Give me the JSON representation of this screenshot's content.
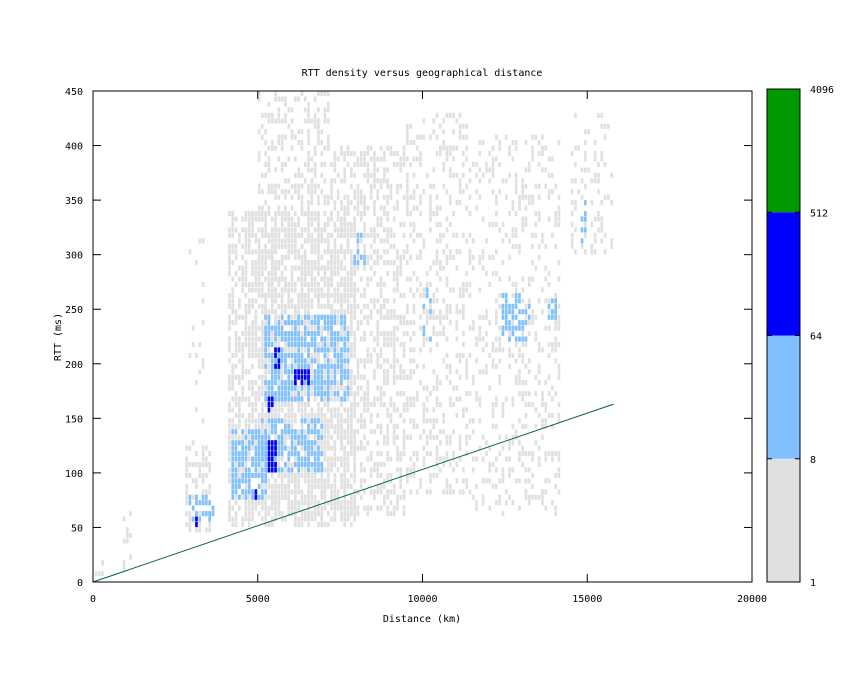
{
  "chart_data": {
    "type": "heatmap",
    "title": "RTT density versus geographical distance",
    "xlabel": "Distance (km)",
    "ylabel": "RTT (ms)",
    "xlim": [
      0,
      20000
    ],
    "ylim": [
      0,
      450
    ],
    "xticks": [
      "0",
      "5000",
      "10000",
      "15000",
      "20000"
    ],
    "yticks": [
      "0",
      "50",
      "100",
      "150",
      "200",
      "250",
      "300",
      "350",
      "400",
      "450"
    ],
    "grid": false,
    "colorbar": {
      "scale": "log2",
      "ticks": [
        "1",
        "8",
        "64",
        "512",
        "4096"
      ],
      "bins": [
        {
          "min": 1,
          "max": 8,
          "color": "#e0e0e0"
        },
        {
          "min": 8,
          "max": 64,
          "color": "#80c0ff"
        },
        {
          "min": 64,
          "max": 512,
          "color": "#0000ff"
        },
        {
          "min": 512,
          "max": 4096,
          "color": "#009900"
        }
      ]
    },
    "reference_line": {
      "x": [
        0,
        15800
      ],
      "y": [
        0,
        163
      ],
      "color": "#006633"
    },
    "regions": [
      {
        "bin": 0,
        "x": [
          50,
          300
        ],
        "y": [
          0,
          25
        ],
        "density": 0.35
      },
      {
        "bin": 0,
        "x": [
          900,
          1200
        ],
        "y": [
          10,
          65
        ],
        "density": 0.35
      },
      {
        "bin": 0,
        "x": [
          2800,
          3600
        ],
        "y": [
          45,
          125
        ],
        "density": 0.45
      },
      {
        "bin": 0,
        "x": [
          2900,
          3400
        ],
        "y": [
          120,
          320
        ],
        "density": 0.1
      },
      {
        "bin": 0,
        "x": [
          4100,
          8000
        ],
        "y": [
          50,
          340
        ],
        "density": 0.6
      },
      {
        "bin": 0,
        "x": [
          5000,
          7200
        ],
        "y": [
          60,
          450
        ],
        "density": 0.35
      },
      {
        "bin": 0,
        "x": [
          7200,
          9500
        ],
        "y": [
          60,
          400
        ],
        "density": 0.45
      },
      {
        "bin": 0,
        "x": [
          9500,
          11500
        ],
        "y": [
          80,
          430
        ],
        "density": 0.28
      },
      {
        "bin": 0,
        "x": [
          11500,
          14200
        ],
        "y": [
          60,
          410
        ],
        "density": 0.25
      },
      {
        "bin": 0,
        "x": [
          14500,
          15800
        ],
        "y": [
          300,
          430
        ],
        "density": 0.25
      },
      {
        "bin": 1,
        "x": [
          2900,
          3700
        ],
        "y": [
          55,
          80
        ],
        "density": 0.55
      },
      {
        "bin": 1,
        "x": [
          4200,
          5300
        ],
        "y": [
          75,
          140
        ],
        "density": 0.7
      },
      {
        "bin": 1,
        "x": [
          5000,
          7000
        ],
        "y": [
          100,
          150
        ],
        "density": 0.6
      },
      {
        "bin": 1,
        "x": [
          5200,
          7800
        ],
        "y": [
          165,
          245
        ],
        "density": 0.6
      },
      {
        "bin": 1,
        "x": [
          7900,
          8300
        ],
        "y": [
          290,
          320
        ],
        "density": 0.5
      },
      {
        "bin": 1,
        "x": [
          10000,
          10300
        ],
        "y": [
          220,
          270
        ],
        "density": 0.45
      },
      {
        "bin": 1,
        "x": [
          12400,
          13300
        ],
        "y": [
          220,
          265
        ],
        "density": 0.5
      },
      {
        "bin": 1,
        "x": [
          13800,
          14100
        ],
        "y": [
          240,
          260
        ],
        "density": 0.6
      },
      {
        "bin": 1,
        "x": [
          14800,
          15000
        ],
        "y": [
          310,
          350
        ],
        "density": 0.5
      },
      {
        "bin": 2,
        "x": [
          3100,
          3200
        ],
        "y": [
          50,
          60
        ],
        "density": 0.8
      },
      {
        "bin": 2,
        "x": [
          4900,
          5000
        ],
        "y": [
          75,
          85
        ],
        "density": 0.9
      },
      {
        "bin": 2,
        "x": [
          5300,
          5600
        ],
        "y": [
          100,
          130
        ],
        "density": 0.9
      },
      {
        "bin": 2,
        "x": [
          5300,
          5450
        ],
        "y": [
          155,
          170
        ],
        "density": 0.9
      },
      {
        "bin": 2,
        "x": [
          5500,
          5700
        ],
        "y": [
          195,
          215
        ],
        "density": 0.8
      },
      {
        "bin": 2,
        "x": [
          6100,
          6600
        ],
        "y": [
          180,
          195
        ],
        "density": 0.8
      }
    ]
  }
}
